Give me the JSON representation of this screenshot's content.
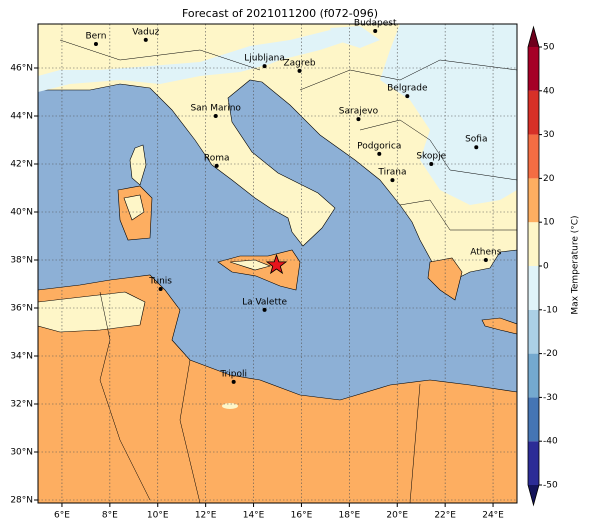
{
  "title": "Forecast of 2021011200 (f072-096)",
  "map": {
    "lon_range": [
      5,
      25
    ],
    "lat_range": [
      27.875,
      47.833
    ],
    "lon_ticks": [
      {
        "value": 6,
        "label": "6°E"
      },
      {
        "value": 8,
        "label": "8°E"
      },
      {
        "value": 10,
        "label": "10°E"
      },
      {
        "value": 12,
        "label": "12°E"
      },
      {
        "value": 14,
        "label": "14°E"
      },
      {
        "value": 16,
        "label": "16°E"
      },
      {
        "value": 18,
        "label": "18°E"
      },
      {
        "value": 20,
        "label": "20°E"
      },
      {
        "value": 22,
        "label": "22°E"
      },
      {
        "value": 24,
        "label": "24°E"
      }
    ],
    "lat_ticks": [
      {
        "value": 28,
        "label": "28°N"
      },
      {
        "value": 30,
        "label": "30°N"
      },
      {
        "value": 32,
        "label": "32°N"
      },
      {
        "value": 34,
        "label": "34°N"
      },
      {
        "value": 36,
        "label": "36°N"
      },
      {
        "value": 38,
        "label": "38°N"
      },
      {
        "value": 40,
        "label": "40°N"
      },
      {
        "value": 42,
        "label": "42°N"
      },
      {
        "value": 44,
        "label": "44°N"
      },
      {
        "value": 46,
        "label": "46°N"
      }
    ],
    "cities": [
      {
        "name": "Bern",
        "lon": 7.42,
        "lat": 47.0
      },
      {
        "name": "Vaduz",
        "lon": 9.5,
        "lat": 47.17
      },
      {
        "name": "Budapest",
        "lon": 19.08,
        "lat": 47.54
      },
      {
        "name": "Ljubljana",
        "lon": 14.46,
        "lat": 46.08
      },
      {
        "name": "Zagreb",
        "lon": 15.92,
        "lat": 45.88
      },
      {
        "name": "Belgrade",
        "lon": 20.42,
        "lat": 44.83
      },
      {
        "name": "San Marino",
        "lon": 12.42,
        "lat": 44.0
      },
      {
        "name": "Sarajevo",
        "lon": 18.38,
        "lat": 43.87
      },
      {
        "name": "Sofia",
        "lon": 23.3,
        "lat": 42.7
      },
      {
        "name": "Podgorica",
        "lon": 19.25,
        "lat": 42.42
      },
      {
        "name": "Skopje",
        "lon": 21.42,
        "lat": 42.0
      },
      {
        "name": "Roma",
        "lon": 12.46,
        "lat": 41.92
      },
      {
        "name": "Tirana",
        "lon": 19.8,
        "lat": 41.33
      },
      {
        "name": "Athens",
        "lon": 23.7,
        "lat": 38.0
      },
      {
        "name": "Tunis",
        "lon": 10.12,
        "lat": 36.79
      },
      {
        "name": "La Valette",
        "lon": 14.46,
        "lat": 35.92
      },
      {
        "name": "Tripoli",
        "lon": 13.17,
        "lat": 32.92
      }
    ],
    "marker": {
      "lon": 14.96,
      "lat": 37.79,
      "color": "#e8141c"
    }
  },
  "colorbar": {
    "label": "Max Temperature (°C)",
    "ticks": [
      -50,
      -40,
      -30,
      -20,
      -10,
      0,
      10,
      20,
      30,
      40,
      50
    ],
    "colors": [
      "#2c2c96",
      "#4575b4",
      "#74a9cf",
      "#abd0e6",
      "#e0f3f8",
      "#fef6c8",
      "#fdae61",
      "#f46d43",
      "#d73027",
      "#a50026"
    ],
    "under_color": "#14145a",
    "over_color": "#6e001c"
  }
}
